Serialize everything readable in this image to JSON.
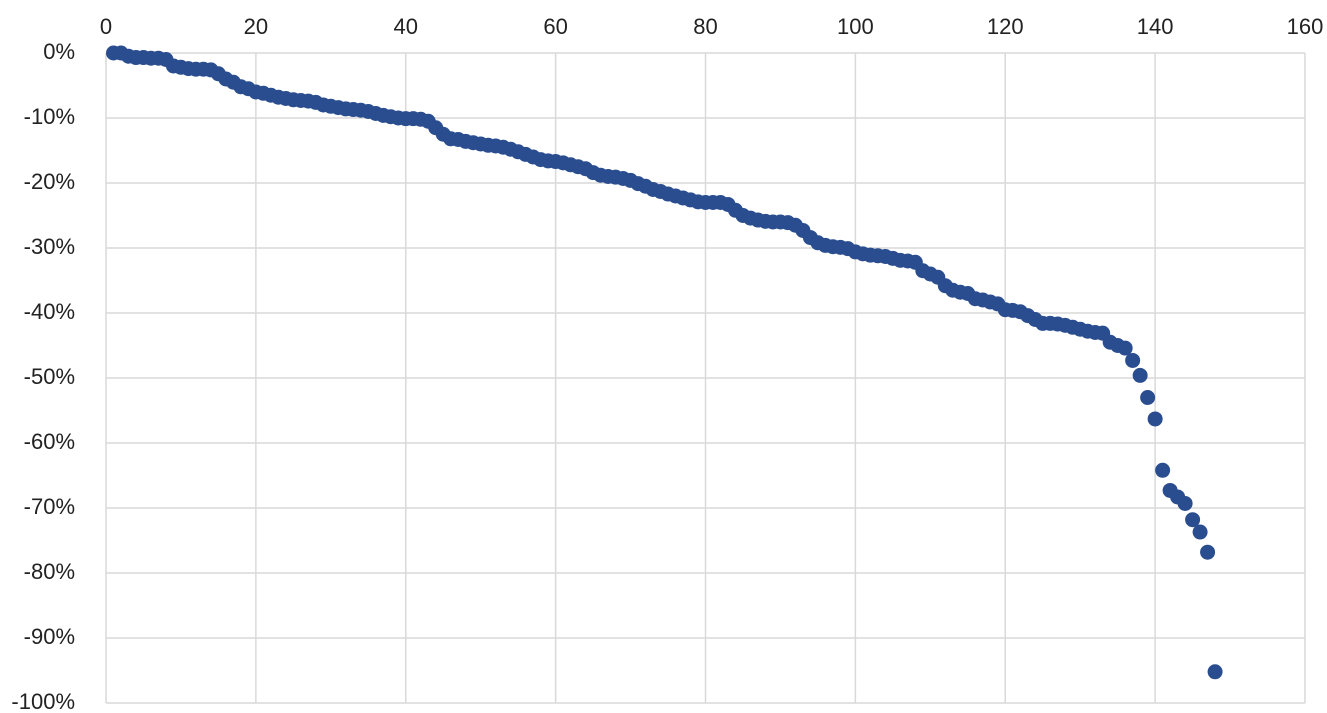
{
  "chart_data": {
    "type": "scatter",
    "x": [
      1,
      2,
      3,
      4,
      5,
      6,
      7,
      8,
      9,
      10,
      11,
      12,
      13,
      14,
      15,
      16,
      17,
      18,
      19,
      20,
      21,
      22,
      23,
      24,
      25,
      26,
      27,
      28,
      29,
      30,
      31,
      32,
      33,
      34,
      35,
      36,
      37,
      38,
      39,
      40,
      41,
      42,
      43,
      44,
      45,
      46,
      47,
      48,
      49,
      50,
      51,
      52,
      53,
      54,
      55,
      56,
      57,
      58,
      59,
      60,
      61,
      62,
      63,
      64,
      65,
      66,
      67,
      68,
      69,
      70,
      71,
      72,
      73,
      74,
      75,
      76,
      77,
      78,
      79,
      80,
      81,
      82,
      83,
      84,
      85,
      86,
      87,
      88,
      89,
      90,
      91,
      92,
      93,
      94,
      95,
      96,
      97,
      98,
      99,
      100,
      101,
      102,
      103,
      104,
      105,
      106,
      107,
      108,
      109,
      110,
      111,
      112,
      113,
      114,
      115,
      116,
      117,
      118,
      119,
      120,
      121,
      122,
      123,
      124,
      125,
      126,
      127,
      128,
      129,
      130,
      131,
      132,
      133,
      134,
      135,
      136,
      137,
      138,
      139,
      140,
      141,
      142,
      143,
      144,
      145,
      146,
      147,
      148
    ],
    "values": [
      0,
      0,
      -0.5,
      -0.7,
      -0.7,
      -0.8,
      -0.8,
      -1,
      -2,
      -2.2,
      -2.4,
      -2.5,
      -2.5,
      -2.6,
      -3.2,
      -4,
      -4.5,
      -5.2,
      -5.5,
      -6,
      -6.2,
      -6.5,
      -6.8,
      -7,
      -7.2,
      -7.3,
      -7.4,
      -7.6,
      -8,
      -8.2,
      -8.4,
      -8.6,
      -8.7,
      -8.8,
      -9,
      -9.3,
      -9.6,
      -9.8,
      -10,
      -10.1,
      -10.1,
      -10.2,
      -10.5,
      -11.5,
      -12.5,
      -13.2,
      -13.3,
      -13.6,
      -13.8,
      -14,
      -14.2,
      -14.3,
      -14.5,
      -14.8,
      -15.2,
      -15.6,
      -16,
      -16.4,
      -16.6,
      -16.7,
      -16.9,
      -17.2,
      -17.5,
      -17.8,
      -18.4,
      -18.8,
      -19,
      -19.1,
      -19.3,
      -19.6,
      -20.1,
      -20.5,
      -21,
      -21.3,
      -21.7,
      -22,
      -22.3,
      -22.6,
      -22.9,
      -23,
      -23,
      -23,
      -23.3,
      -24.2,
      -25,
      -25.4,
      -25.7,
      -25.9,
      -26,
      -26,
      -26.1,
      -26.5,
      -27.3,
      -28.4,
      -29.2,
      -29.6,
      -29.8,
      -29.9,
      -30.1,
      -30.6,
      -30.9,
      -31.1,
      -31.2,
      -31.3,
      -31.6,
      -31.9,
      -32,
      -32.2,
      -33.5,
      -34,
      -34.5,
      -35.8,
      -36.5,
      -36.8,
      -37,
      -37.8,
      -38,
      -38.3,
      -38.6,
      -39.5,
      -39.6,
      -39.8,
      -40.4,
      -41,
      -41.6,
      -41.6,
      -41.7,
      -41.9,
      -42.2,
      -42.5,
      -42.8,
      -43,
      -43.1,
      -44.5,
      -45,
      -45.4,
      -47.3,
      -49.6,
      -53,
      -56.3,
      -64.2,
      -67.3,
      -68.3,
      -69.3,
      -71.8,
      -73.7,
      -76.8,
      -95.2
    ],
    "color": "#2a4d8f",
    "xlim": [
      0,
      160
    ],
    "xticks": [
      0,
      20,
      40,
      60,
      80,
      100,
      120,
      140,
      160
    ],
    "ylim": [
      -100,
      0
    ],
    "yticks": [
      {
        "value": 0,
        "label": "0%"
      },
      {
        "value": -10,
        "label": "-10%"
      },
      {
        "value": -20,
        "label": "-20%"
      },
      {
        "value": -30,
        "label": "-30%"
      },
      {
        "value": -40,
        "label": "-40%"
      },
      {
        "value": -50,
        "label": "-50%"
      },
      {
        "value": -60,
        "label": "-60%"
      },
      {
        "value": -70,
        "label": "-70%"
      },
      {
        "value": -80,
        "label": "-80%"
      },
      {
        "value": -90,
        "label": "-90%"
      },
      {
        "value": -100,
        "label": "-100%"
      }
    ],
    "grid": true
  }
}
